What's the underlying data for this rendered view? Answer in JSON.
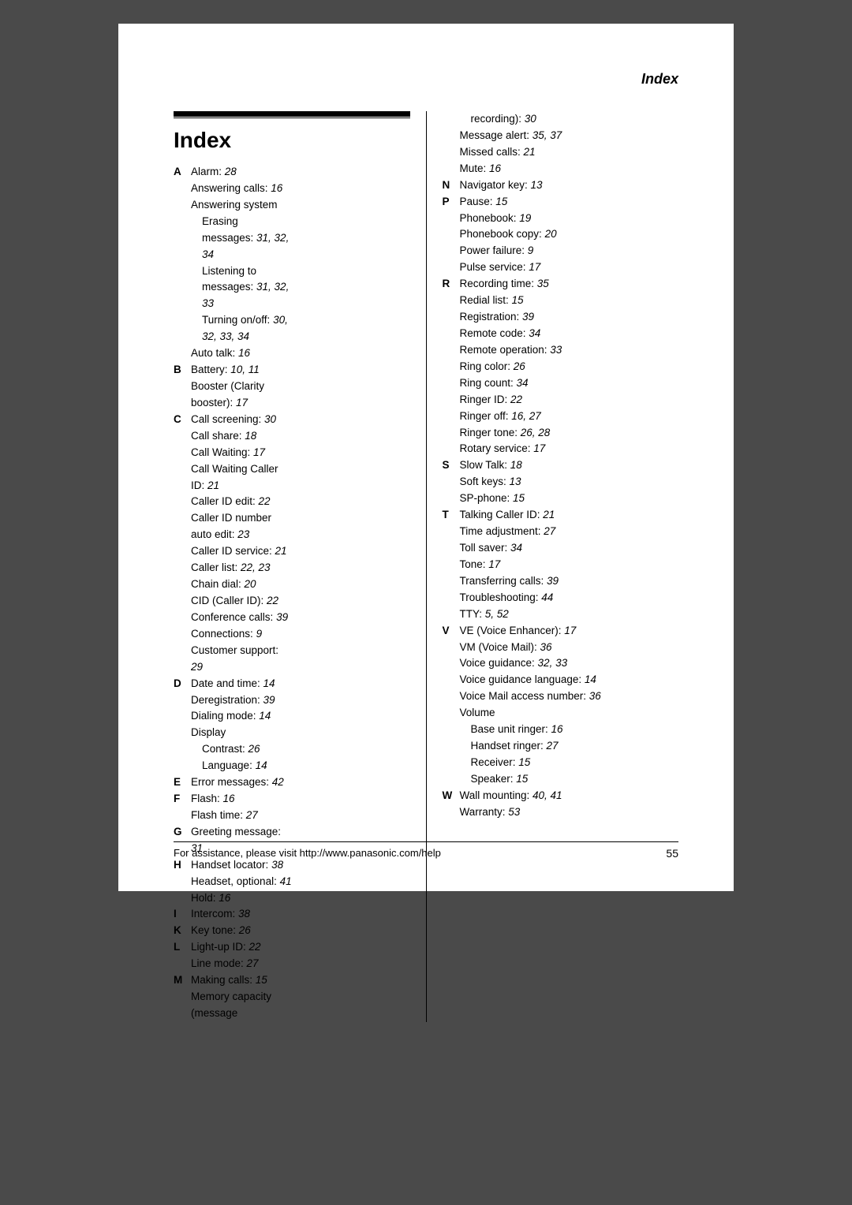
{
  "corner_title": "Index",
  "main_heading": "Index",
  "footer_text": "For assistance, please visit http://www.panasonic.com/help",
  "page_number": "55",
  "colors": {
    "page_bg": "#ffffff",
    "body_bg": "#4a4a4a",
    "text": "#000000",
    "rule": "#000000"
  },
  "typography": {
    "body_size_pt": 10,
    "heading_size_pt": 21,
    "corner_size_pt": 13,
    "font_family": "Arial"
  },
  "left_column": [
    {
      "letter": "A",
      "lines": [
        {
          "t": "Alarm:",
          "p": "28"
        },
        {
          "t": "Answering calls:",
          "p": "16"
        },
        {
          "t": "Answering system",
          "p": ""
        },
        {
          "t": "Erasing messages:",
          "p": "31, 32, 34",
          "sub": true
        },
        {
          "t": "Listening to messages:",
          "p": "31, 32, 33",
          "sub": true
        },
        {
          "t": "Turning on/off:",
          "p": "30, 32, 33, 34",
          "sub": true
        },
        {
          "t": "Auto talk:",
          "p": "16"
        }
      ]
    },
    {
      "letter": "B",
      "lines": [
        {
          "t": "Battery:",
          "p": "10, 11"
        },
        {
          "t": "Booster (Clarity booster):",
          "p": "17"
        }
      ]
    },
    {
      "letter": "C",
      "lines": [
        {
          "t": "Call screening:",
          "p": "30"
        },
        {
          "t": "Call share:",
          "p": "18"
        },
        {
          "t": "Call Waiting:",
          "p": "17"
        },
        {
          "t": "Call Waiting Caller ID:",
          "p": "21"
        },
        {
          "t": "Caller ID edit:",
          "p": "22"
        },
        {
          "t": "Caller ID number auto edit:",
          "p": "23"
        },
        {
          "t": "Caller ID service:",
          "p": "21"
        },
        {
          "t": "Caller list:",
          "p": "22, 23"
        },
        {
          "t": "Chain dial:",
          "p": "20"
        },
        {
          "t": "CID (Caller ID):",
          "p": "22"
        },
        {
          "t": "Conference calls:",
          "p": "39"
        },
        {
          "t": "Connections:",
          "p": "9"
        },
        {
          "t": "Customer support:",
          "p": "29"
        }
      ]
    },
    {
      "letter": "D",
      "lines": [
        {
          "t": "Date and time:",
          "p": "14"
        },
        {
          "t": "Deregistration:",
          "p": "39"
        },
        {
          "t": "Dialing mode:",
          "p": "14"
        },
        {
          "t": "Display",
          "p": ""
        },
        {
          "t": "Contrast:",
          "p": "26",
          "sub": true
        },
        {
          "t": "Language:",
          "p": "14",
          "sub": true
        }
      ]
    },
    {
      "letter": "E",
      "lines": [
        {
          "t": "Error messages:",
          "p": "42"
        }
      ]
    },
    {
      "letter": "F",
      "lines": [
        {
          "t": "Flash:",
          "p": "16"
        },
        {
          "t": "Flash time:",
          "p": "27"
        }
      ]
    },
    {
      "letter": "G",
      "lines": [
        {
          "t": "Greeting message:",
          "p": "31"
        }
      ]
    },
    {
      "letter": "H",
      "lines": [
        {
          "t": "Handset locator:",
          "p": "38"
        },
        {
          "t": "Headset, optional:",
          "p": "41"
        },
        {
          "t": "Hold:",
          "p": "16"
        }
      ]
    },
    {
      "letter": "I",
      "lines": [
        {
          "t": "Intercom:",
          "p": "38"
        }
      ]
    },
    {
      "letter": "K",
      "lines": [
        {
          "t": "Key tone:",
          "p": "26"
        }
      ]
    },
    {
      "letter": "L",
      "lines": [
        {
          "t": "Light-up ID:",
          "p": "22"
        },
        {
          "t": "Line mode:",
          "p": "27"
        }
      ]
    },
    {
      "letter": "M",
      "lines": [
        {
          "t": "Making calls:",
          "p": "15"
        },
        {
          "t": "Memory capacity (message",
          "p": ""
        }
      ]
    }
  ],
  "right_column": [
    {
      "letter": "",
      "lines": [
        {
          "t": "recording):",
          "p": "30",
          "sub": true
        },
        {
          "t": "Message alert:",
          "p": "35, 37"
        },
        {
          "t": "Missed calls:",
          "p": "21"
        },
        {
          "t": "Mute:",
          "p": "16"
        }
      ]
    },
    {
      "letter": "N",
      "lines": [
        {
          "t": "Navigator key:",
          "p": "13"
        }
      ]
    },
    {
      "letter": "P",
      "lines": [
        {
          "t": "Pause:",
          "p": "15"
        },
        {
          "t": "Phonebook:",
          "p": "19"
        },
        {
          "t": "Phonebook copy:",
          "p": "20"
        },
        {
          "t": "Power failure:",
          "p": "9"
        },
        {
          "t": "Pulse service:",
          "p": "17"
        }
      ]
    },
    {
      "letter": "R",
      "lines": [
        {
          "t": "Recording time:",
          "p": "35"
        },
        {
          "t": "Redial list:",
          "p": "15"
        },
        {
          "t": "Registration:",
          "p": "39"
        },
        {
          "t": "Remote code:",
          "p": "34"
        },
        {
          "t": "Remote operation:",
          "p": "33"
        },
        {
          "t": "Ring color:",
          "p": "26"
        },
        {
          "t": "Ring count:",
          "p": "34"
        },
        {
          "t": "Ringer ID:",
          "p": "22"
        },
        {
          "t": "Ringer off:",
          "p": "16, 27"
        },
        {
          "t": "Ringer tone:",
          "p": "26, 28"
        },
        {
          "t": "Rotary service:",
          "p": "17"
        }
      ]
    },
    {
      "letter": "S",
      "lines": [
        {
          "t": "Slow Talk:",
          "p": "18"
        },
        {
          "t": "Soft keys:",
          "p": "13"
        },
        {
          "t": "SP-phone:",
          "p": "15"
        }
      ]
    },
    {
      "letter": "T",
      "lines": [
        {
          "t": "Talking Caller ID:",
          "p": "21"
        },
        {
          "t": "Time adjustment:",
          "p": "27"
        },
        {
          "t": "Toll saver:",
          "p": "34"
        },
        {
          "t": "Tone:",
          "p": "17"
        },
        {
          "t": "Transferring calls:",
          "p": "39"
        },
        {
          "t": "Troubleshooting:",
          "p": "44"
        },
        {
          "t": "TTY:",
          "p": "5, 52"
        }
      ]
    },
    {
      "letter": "V",
      "lines": [
        {
          "t": "VE (Voice Enhancer):",
          "p": "17"
        },
        {
          "t": "VM (Voice Mail):",
          "p": "36"
        },
        {
          "t": "Voice guidance:",
          "p": "32, 33"
        },
        {
          "t": "Voice guidance language:",
          "p": "14"
        },
        {
          "t": "Voice Mail access number:",
          "p": "36"
        },
        {
          "t": "Volume",
          "p": ""
        },
        {
          "t": "Base unit ringer:",
          "p": "16",
          "sub": true
        },
        {
          "t": "Handset ringer:",
          "p": "27",
          "sub": true
        },
        {
          "t": "Receiver:",
          "p": "15",
          "sub": true
        },
        {
          "t": "Speaker:",
          "p": "15",
          "sub": true
        }
      ]
    },
    {
      "letter": "W",
      "lines": [
        {
          "t": "Wall mounting:",
          "p": "40, 41"
        },
        {
          "t": "Warranty:",
          "p": "53"
        }
      ]
    }
  ]
}
